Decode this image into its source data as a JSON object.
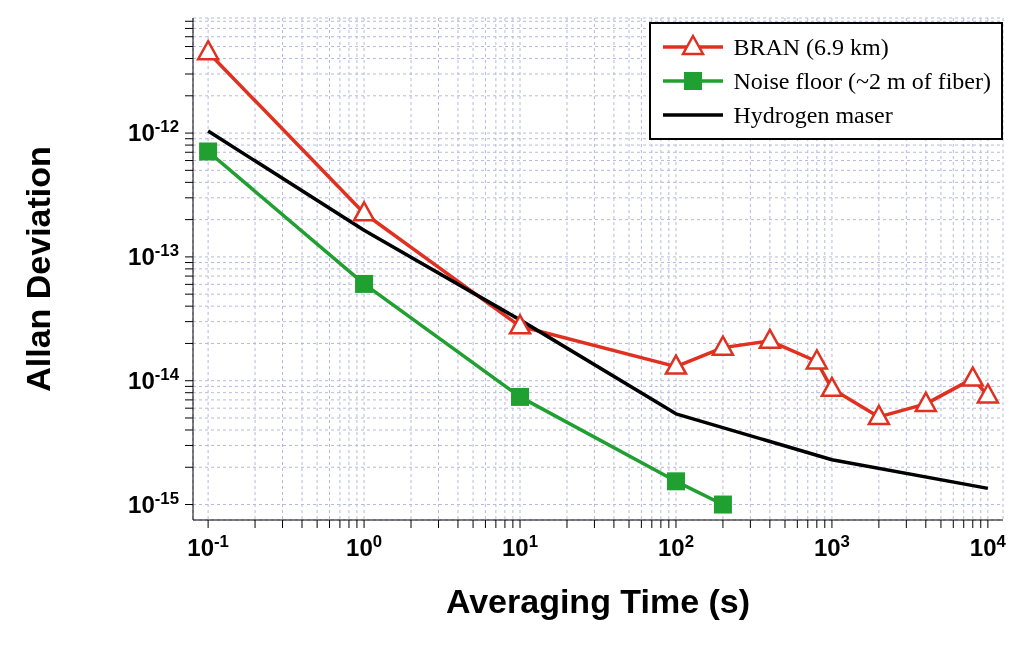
{
  "chart_data": {
    "type": "line",
    "xlabel": "Averaging Time (s)",
    "ylabel": "Allan Deviation",
    "log": "xy",
    "grid": true,
    "legend": "top right",
    "line_style": "solid",
    "xlim": [
      0.08,
      12500
    ],
    "ylim": [
      7.5e-16,
      8.5e-12
    ],
    "xticks": [
      {
        "value": 0.1,
        "label": "10$^{-1}$"
      },
      {
        "value": 0.2,
        "label": null
      },
      {
        "value": 0.3,
        "label": null
      },
      {
        "value": 0.4,
        "label": null
      },
      {
        "value": 0.5,
        "label": null
      },
      {
        "value": 0.6,
        "label": null
      },
      {
        "value": 0.7,
        "label": null
      },
      {
        "value": 0.8,
        "label": null
      },
      {
        "value": 0.9,
        "label": null
      },
      {
        "value": 1,
        "label": "10$^{0}$"
      },
      {
        "value": 2,
        "label": null
      },
      {
        "value": 3,
        "label": null
      },
      {
        "value": 4,
        "label": null
      },
      {
        "value": 5,
        "label": null
      },
      {
        "value": 6,
        "label": null
      },
      {
        "value": 7,
        "label": null
      },
      {
        "value": 8,
        "label": null
      },
      {
        "value": 9,
        "label": null
      },
      {
        "value": 10,
        "label": "10$^{1}$"
      },
      {
        "value": 20,
        "label": null
      },
      {
        "value": 30,
        "label": null
      },
      {
        "value": 40,
        "label": null
      },
      {
        "value": 50,
        "label": null
      },
      {
        "value": 60,
        "label": null
      },
      {
        "value": 70,
        "label": null
      },
      {
        "value": 80,
        "label": null
      },
      {
        "value": 90,
        "label": null
      },
      {
        "value": 100,
        "label": "10$^{2}$"
      },
      {
        "value": 200,
        "label": null
      },
      {
        "value": 300,
        "label": null
      },
      {
        "value": 400,
        "label": null
      },
      {
        "value": 500,
        "label": null
      },
      {
        "value": 600,
        "label": null
      },
      {
        "value": 700,
        "label": null
      },
      {
        "value": 800,
        "label": null
      },
      {
        "value": 900,
        "label": null
      },
      {
        "value": 1000,
        "label": "10$^{3}$"
      },
      {
        "value": 2000,
        "label": null
      },
      {
        "value": 3000,
        "label": null
      },
      {
        "value": 4000,
        "label": null
      },
      {
        "value": 5000,
        "label": null
      },
      {
        "value": 6000,
        "label": null
      },
      {
        "value": 7000,
        "label": null
      },
      {
        "value": 8000,
        "label": null
      },
      {
        "value": 9000,
        "label": null
      },
      {
        "value": 10000,
        "label": "10$^{4}$"
      }
    ],
    "yticks": [
      {
        "value": 1e-15,
        "label": "10$^{-15}$"
      },
      {
        "value": 2e-15,
        "label": null
      },
      {
        "value": 3e-15,
        "label": null
      },
      {
        "value": 4e-15,
        "label": null
      },
      {
        "value": 5e-15,
        "label": null
      },
      {
        "value": 6e-15,
        "label": null
      },
      {
        "value": 7e-15,
        "label": null
      },
      {
        "value": 8e-15,
        "label": null
      },
      {
        "value": 9e-15,
        "label": null
      },
      {
        "value": 1e-14,
        "label": "10$^{-14}$"
      },
      {
        "value": 2e-14,
        "label": null
      },
      {
        "value": 3e-14,
        "label": null
      },
      {
        "value": 4e-14,
        "label": null
      },
      {
        "value": 5e-14,
        "label": null
      },
      {
        "value": 6e-14,
        "label": null
      },
      {
        "value": 7e-14,
        "label": null
      },
      {
        "value": 8e-14,
        "label": null
      },
      {
        "value": 9e-14,
        "label": null
      },
      {
        "value": 1e-13,
        "label": "10$^{-13}$"
      },
      {
        "value": 2e-13,
        "label": null
      },
      {
        "value": 3e-13,
        "label": null
      },
      {
        "value": 4e-13,
        "label": null
      },
      {
        "value": 5e-13,
        "label": null
      },
      {
        "value": 6e-13,
        "label": null
      },
      {
        "value": 7e-13,
        "label": null
      },
      {
        "value": 8e-13,
        "label": null
      },
      {
        "value": 9e-13,
        "label": null
      },
      {
        "value": 1e-12,
        "label": "10$^{-12}$"
      },
      {
        "value": 2e-12,
        "label": null
      },
      {
        "value": 3e-12,
        "label": null
      },
      {
        "value": 4e-12,
        "label": null
      },
      {
        "value": 5e-12,
        "label": null
      },
      {
        "value": 6e-12,
        "label": null
      },
      {
        "value": 7e-12,
        "label": null
      },
      {
        "value": 8e-12,
        "label": null
      }
    ],
    "series": [
      {
        "name": "BRAN (6.9 km)",
        "color": "#e03020",
        "marker": "triangle",
        "x": [
          0.1,
          1,
          10,
          100,
          200,
          400,
          800,
          1000,
          2000,
          4000,
          8000,
          10000
        ],
        "values": [
          4.5e-12,
          2.25e-13,
          2.75e-14,
          1.3e-14,
          1.85e-14,
          2.1e-14,
          1.43e-14,
          8.6e-15,
          5.1e-15,
          6.5e-15,
          1.04e-14,
          7.6e-15
        ]
      },
      {
        "name": "Noise floor (~2 m of fiber)",
        "color": "#20a030",
        "marker": "square",
        "x": [
          0.1,
          1,
          10,
          100,
          200
        ],
        "values": [
          7.1e-13,
          6.05e-14,
          7.4e-15,
          1.54e-15,
          1e-15
        ]
      },
      {
        "name": "Hydrogen maser",
        "color": "#000000",
        "marker": "none",
        "x": [
          0.1,
          1,
          10,
          100,
          1000,
          10000
        ],
        "values": [
          1.04e-12,
          1.64e-13,
          3.1e-14,
          5.4e-15,
          2.3e-15,
          1.35e-15
        ]
      }
    ]
  }
}
